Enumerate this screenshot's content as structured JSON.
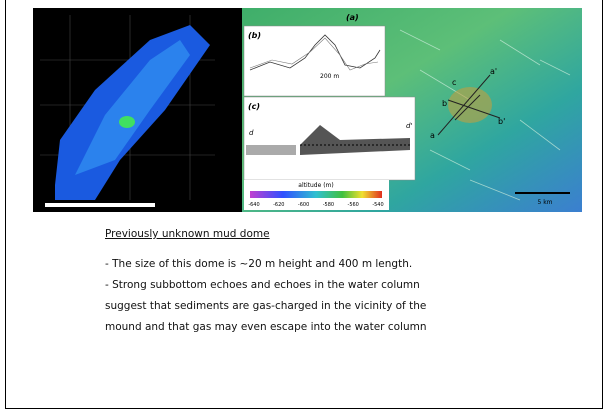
{
  "figure": {
    "panel_labels": [
      "(a)",
      "(b)",
      "(c)"
    ],
    "colorbar": {
      "label": "altitude (m)",
      "ticks": [
        "-640",
        "-620",
        "-600",
        "-580",
        "-560",
        "-540"
      ]
    },
    "scale_labels": [
      "200 m",
      "5 km"
    ],
    "profile_labels": [
      "a",
      "a'",
      "b",
      "b'",
      "c",
      "d",
      "d'"
    ]
  },
  "caption": {
    "title": "Previously unknown mud dome",
    "lines": [
      "- The size of this dome is ~20 m height and 400 m length.",
      "- Strong subbottom echoes and echoes in the water column",
      "suggest that sediments are gas-charged in the vicinity of the",
      "mound and that gas may even escape into the water column"
    ]
  }
}
